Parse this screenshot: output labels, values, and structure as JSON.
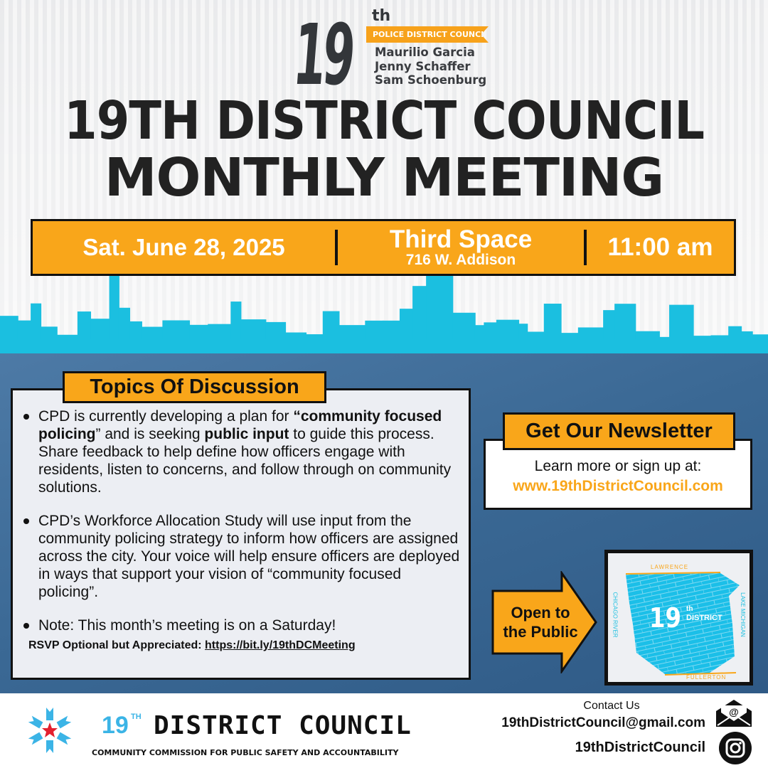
{
  "logo": {
    "number": "19",
    "suffix": "th",
    "banner": "POLICE DISTRICT COUNCIL",
    "members": [
      "Maurilio Garcia",
      "Jenny Schaffer",
      "Sam Schoenburg"
    ]
  },
  "title": {
    "line1": "19TH DISTRICT COUNCIL",
    "line2": "MONTHLY MEETING"
  },
  "event": {
    "date": "Sat. June 28, 2025",
    "venue": "Third Space",
    "address": "716 W. Addison",
    "time": "11:00 am"
  },
  "topics": {
    "heading": "Topics Of Discussion",
    "bullets": [
      {
        "parts": [
          "CPD is currently developing a plan for ",
          "“community focused policing",
          "” and is seeking ",
          "public input",
          " to guide this process. Share feedback to help define how officers engage with residents, listen to concerns, and follow through on community solutions."
        ]
      },
      {
        "text": "CPD’s Workforce Allocation Study will use input from the community policing strategy to inform how officers are assigned across the city. Your voice will help ensure officers are deployed in ways that support your vision of “community focused policing”."
      },
      {
        "text": "Note: This month’s meeting is on a Saturday!"
      }
    ],
    "rsvp_label": "RSVP Optional but Appreciated: ",
    "rsvp_link": "https://bit.ly/19thDCMeeting"
  },
  "newsletter": {
    "heading": "Get Our Newsletter",
    "text": "Learn more or sign up at:",
    "link": "www.19thDistrictCouncil.com"
  },
  "open_arrow": {
    "line1": "Open to",
    "line2": "the Public"
  },
  "map": {
    "north": "LAWRENCE",
    "south": "FULLERTON",
    "west": "CHICAGO RIVER",
    "east": "LAKE MICHIGAN",
    "number": "19",
    "suffix": "th",
    "label": "DISTRICT"
  },
  "footer": {
    "org_number": "19",
    "org_suffix": "TH",
    "org_name": "DISTRICT COUNCIL",
    "org_sub": "COMMUNITY COMMISSION FOR PUBLIC SAFETY AND ACCOUNTABILITY",
    "contact_label": "Contact Us",
    "email": "19thDistrictCouncil@gmail.com",
    "instagram": "19thDistrictCouncil"
  },
  "colors": {
    "orange": "#f9a61a",
    "cyan": "#1bbfe0",
    "blue": "#3a6894",
    "dark": "#33363a"
  },
  "icons": {
    "email": "envelope-at-icon",
    "instagram": "instagram-icon",
    "logo": "ccpsa-snowflake-star-icon"
  }
}
